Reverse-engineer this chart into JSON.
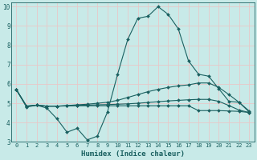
{
  "xlabel": "Humidex (Indice chaleur)",
  "background_color": "#c8eae8",
  "grid_color": "#e8c8c8",
  "line_color": "#1a6060",
  "xlim": [
    -0.5,
    23.5
  ],
  "ylim": [
    3,
    10.2
  ],
  "yticks": [
    3,
    4,
    5,
    6,
    7,
    8,
    9,
    10
  ],
  "xticks": [
    0,
    1,
    2,
    3,
    4,
    5,
    6,
    7,
    8,
    9,
    10,
    11,
    12,
    13,
    14,
    15,
    16,
    17,
    18,
    19,
    20,
    21,
    22,
    23
  ],
  "series": [
    {
      "x": [
        0,
        1,
        2,
        3,
        4,
        5,
        6,
        7,
        8,
        9,
        10,
        11,
        12,
        13,
        14,
        15,
        16,
        17,
        18,
        19,
        20,
        21,
        22,
        23
      ],
      "y": [
        5.7,
        4.8,
        4.9,
        4.75,
        4.2,
        3.5,
        3.7,
        3.1,
        3.3,
        4.55,
        6.5,
        8.3,
        9.4,
        9.5,
        10.0,
        9.6,
        8.85,
        7.2,
        6.5,
        6.4,
        5.75,
        5.1,
        5.05,
        4.55
      ]
    },
    {
      "x": [
        0,
        1,
        2,
        3,
        4,
        5,
        6,
        7,
        8,
        9,
        10,
        11,
        12,
        13,
        14,
        15,
        16,
        17,
        18,
        19,
        20,
        21,
        22,
        23
      ],
      "y": [
        5.7,
        4.85,
        4.9,
        4.85,
        4.85,
        4.88,
        4.92,
        4.95,
        5.0,
        5.05,
        5.15,
        5.3,
        5.45,
        5.6,
        5.72,
        5.82,
        5.9,
        5.95,
        6.05,
        6.05,
        5.82,
        5.45,
        5.05,
        4.6
      ]
    },
    {
      "x": [
        0,
        1,
        2,
        3,
        4,
        5,
        6,
        7,
        8,
        9,
        10,
        11,
        12,
        13,
        14,
        15,
        16,
        17,
        18,
        19,
        20,
        21,
        22,
        23
      ],
      "y": [
        5.7,
        4.85,
        4.9,
        4.85,
        4.85,
        4.87,
        4.89,
        4.9,
        4.92,
        4.93,
        4.95,
        4.97,
        5.0,
        5.04,
        5.08,
        5.12,
        5.15,
        5.18,
        5.2,
        5.2,
        5.1,
        4.88,
        4.65,
        4.52
      ]
    },
    {
      "x": [
        0,
        1,
        2,
        3,
        4,
        5,
        6,
        7,
        8,
        9,
        10,
        11,
        12,
        13,
        14,
        15,
        16,
        17,
        18,
        19,
        20,
        21,
        22,
        23
      ],
      "y": [
        5.7,
        4.85,
        4.9,
        4.85,
        4.85,
        4.86,
        4.87,
        4.87,
        4.87,
        4.87,
        4.87,
        4.87,
        4.87,
        4.87,
        4.87,
        4.87,
        4.87,
        4.87,
        4.62,
        4.62,
        4.62,
        4.6,
        4.58,
        4.52
      ]
    }
  ]
}
